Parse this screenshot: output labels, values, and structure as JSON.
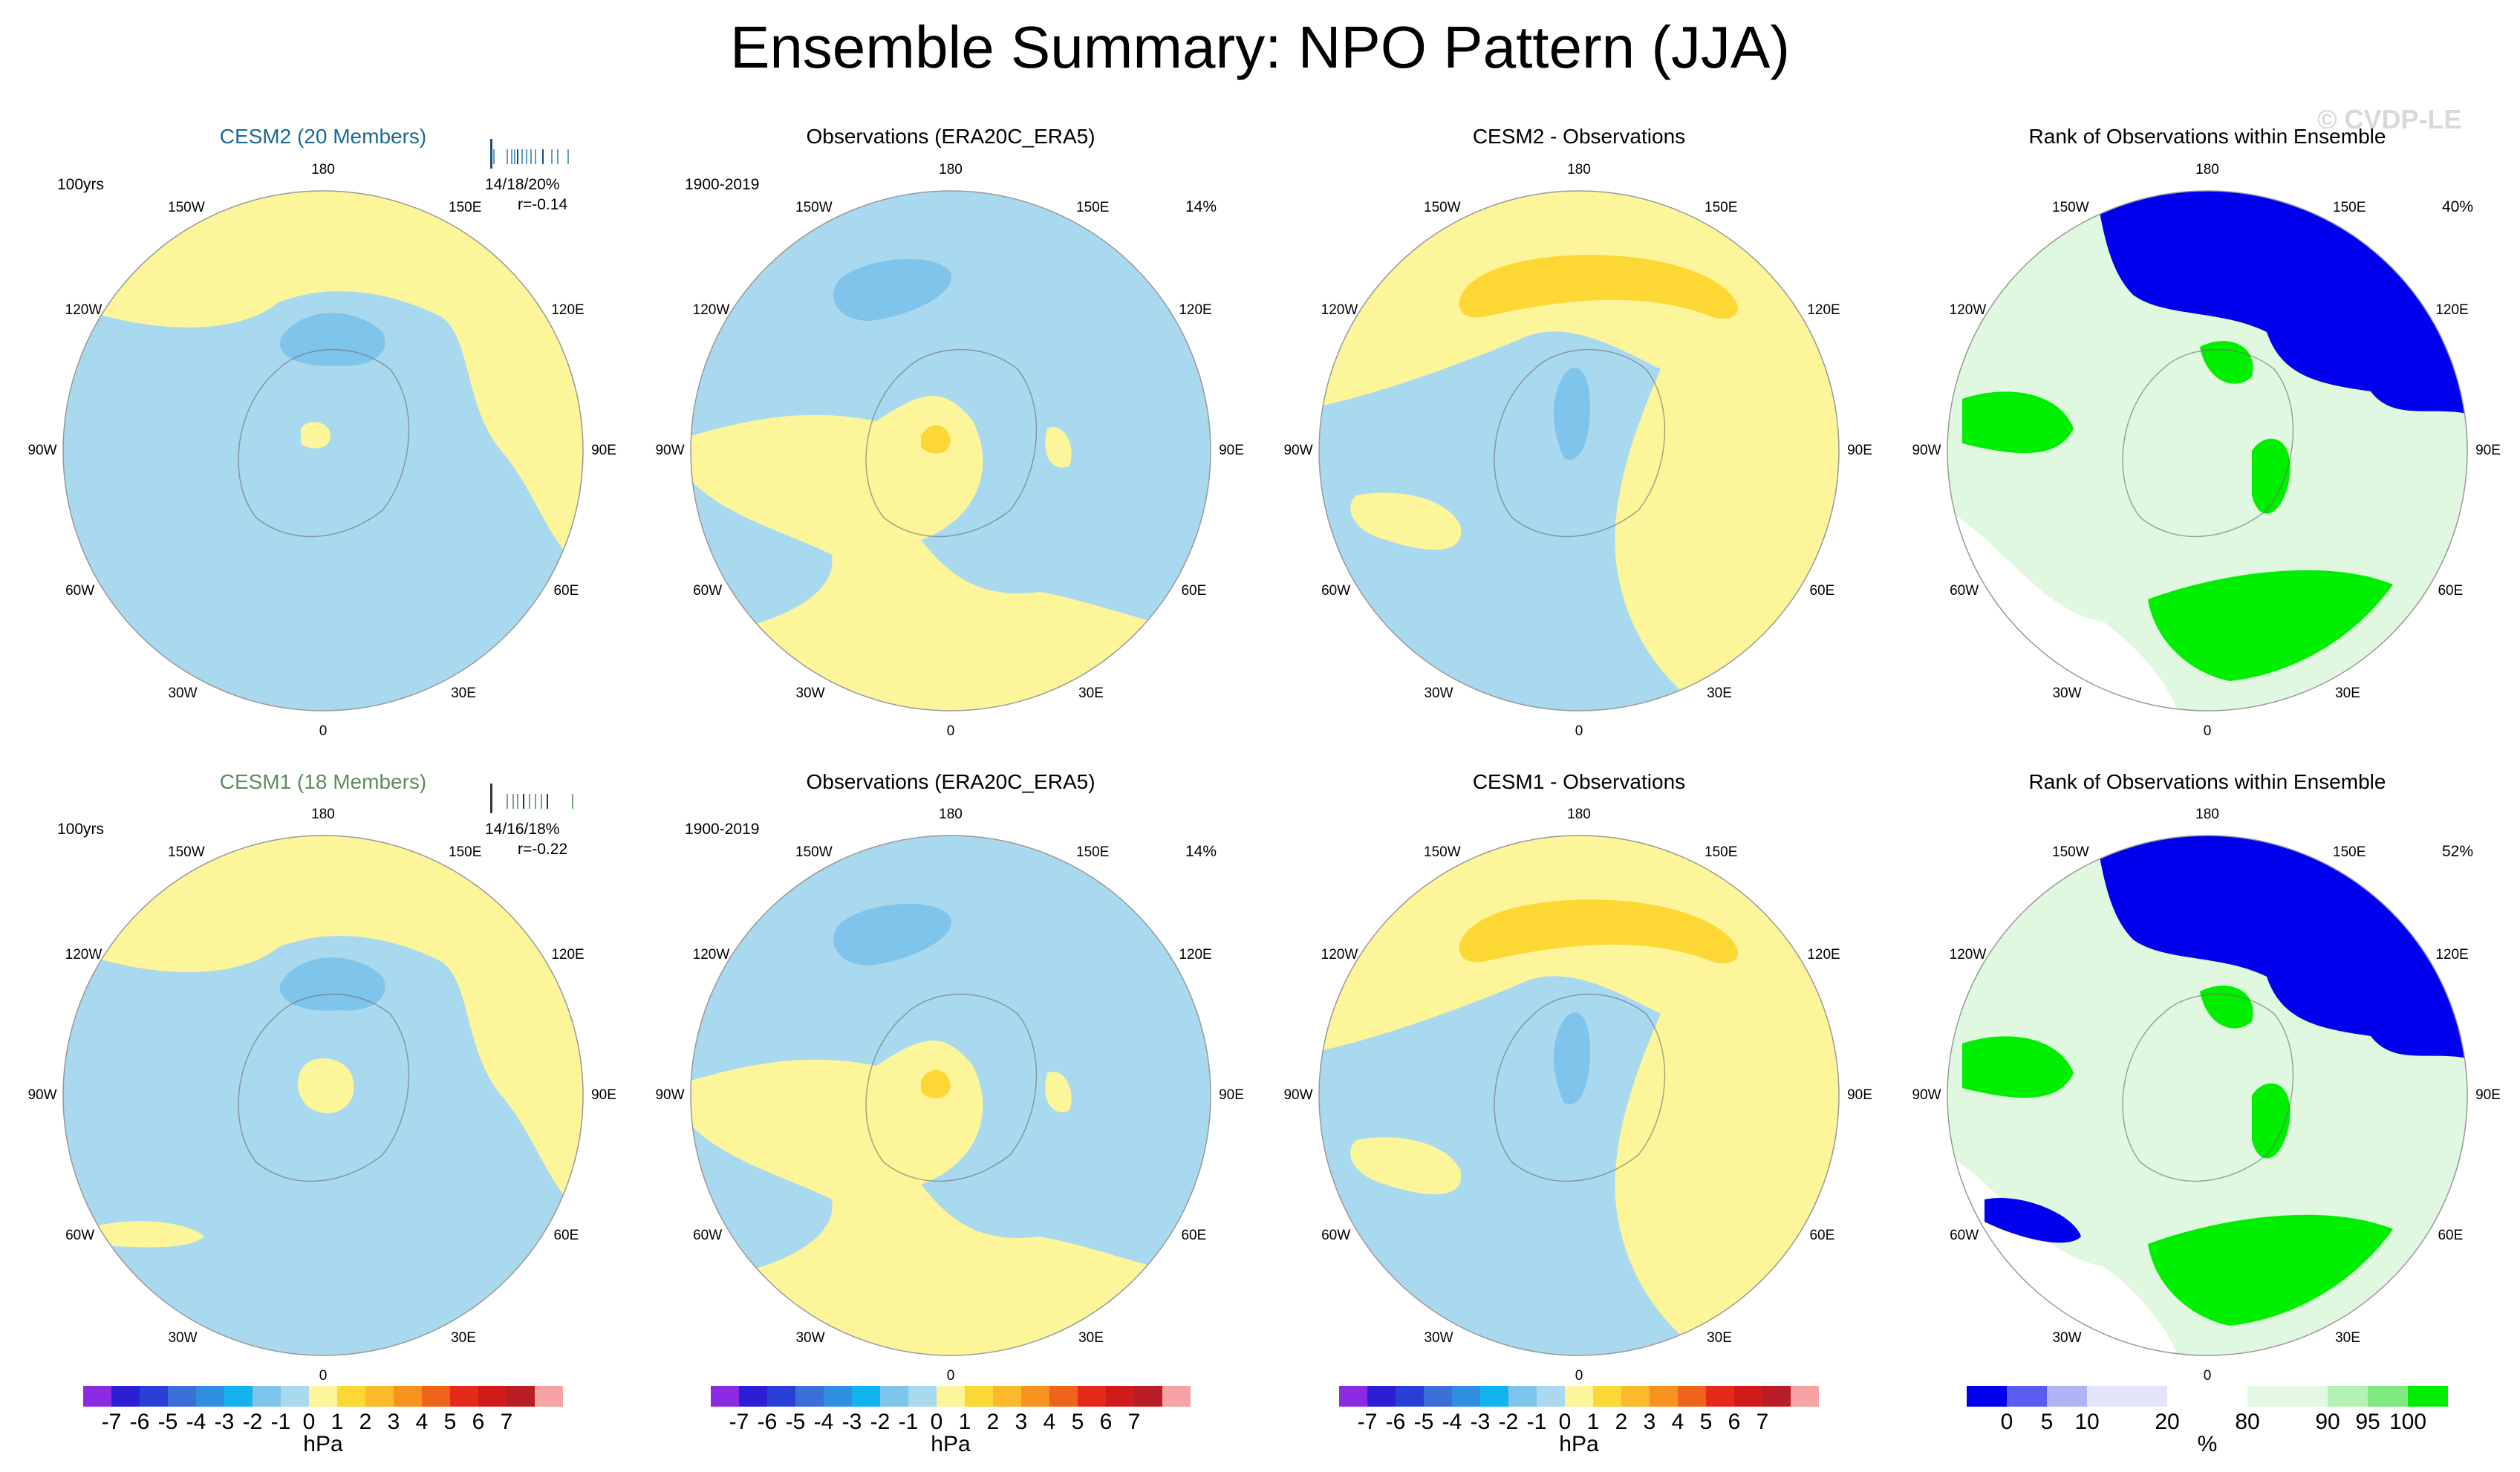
{
  "title": "Ensemble Summary: NPO Pattern (JJA)",
  "watermark": "© CVDP-LE",
  "colors": {
    "ocean": "#a9d9ef",
    "land_pos": "#fdf59a",
    "neg1": "#7fc4ea",
    "pos1": "#fdd835",
    "rank_blue": "#0000ee",
    "rank_lightblue": "#b0b4f6",
    "rank_green": "#00ee00",
    "rank_lightgreen": "#dff8df",
    "cesm2_title": "#1a6b8f",
    "cesm1_title": "#5e8c5e"
  },
  "row1": {
    "model": {
      "title": "CESM2 (20 Members)",
      "subtitle_left": "100yrs",
      "stats": "14/18/20%",
      "corr": "r=-0.14"
    },
    "obs": {
      "title": "Observations (ERA20C_ERA5)",
      "subtitle_left": "1900-2019",
      "subtitle_right": "14%"
    },
    "diff": {
      "title": "CESM2 - Observations"
    },
    "rank": {
      "title": "Rank of Observations within Ensemble",
      "subtitle_right": "40%"
    }
  },
  "row2": {
    "model": {
      "title": "CESM1 (18 Members)",
      "subtitle_left": "100yrs",
      "stats": "14/16/18%",
      "corr": "r=-0.22"
    },
    "obs": {
      "title": "Observations (ERA20C_ERA5)",
      "subtitle_left": "1900-2019",
      "subtitle_right": "14%"
    },
    "diff": {
      "title": "CESM1 - Observations"
    },
    "rank": {
      "title": "Rank of Observations within Ensemble",
      "subtitle_right": "52%"
    }
  },
  "lon_labels": {
    "top": "180",
    "bottom": "0",
    "150W": "150W",
    "150E": "150E",
    "120W": "120W",
    "120E": "120E",
    "90W": "90W",
    "90E": "90E",
    "60W": "60W",
    "60E": "60E",
    "30W": "30W",
    "30E": "30E"
  },
  "hpa_colorbar": {
    "unit": "hPa",
    "ticks": [
      "-7",
      "-6",
      "-5",
      "-4",
      "-3",
      "-2",
      "-1",
      "0",
      "1",
      "2",
      "3",
      "4",
      "5",
      "6",
      "7"
    ],
    "colors": [
      "#8a2be2",
      "#2b1fd6",
      "#2a3fd6",
      "#3a6fd8",
      "#2f8ee0",
      "#13b3f0",
      "#7fc4ea",
      "#a9d9ef",
      "#fdf59a",
      "#fdd835",
      "#fbb92b",
      "#f7931e",
      "#f0641a",
      "#e52a1a",
      "#d11a1a",
      "#b81c24",
      "#f5a3a3"
    ]
  },
  "rank_colorbar": {
    "unit": "%",
    "ticks": [
      "0",
      "5",
      "10",
      "20",
      "80",
      "90",
      "95",
      "100"
    ],
    "colors": [
      "#0000ee",
      "#5a5cf0",
      "#b0b4f6",
      "#e3e4fa",
      "#e3e4fa",
      "#ffffff",
      "#ffffff",
      "#e3f8e3",
      "#e3f8e3",
      "#b5f1b5",
      "#7fe87f",
      "#00ee00"
    ]
  }
}
